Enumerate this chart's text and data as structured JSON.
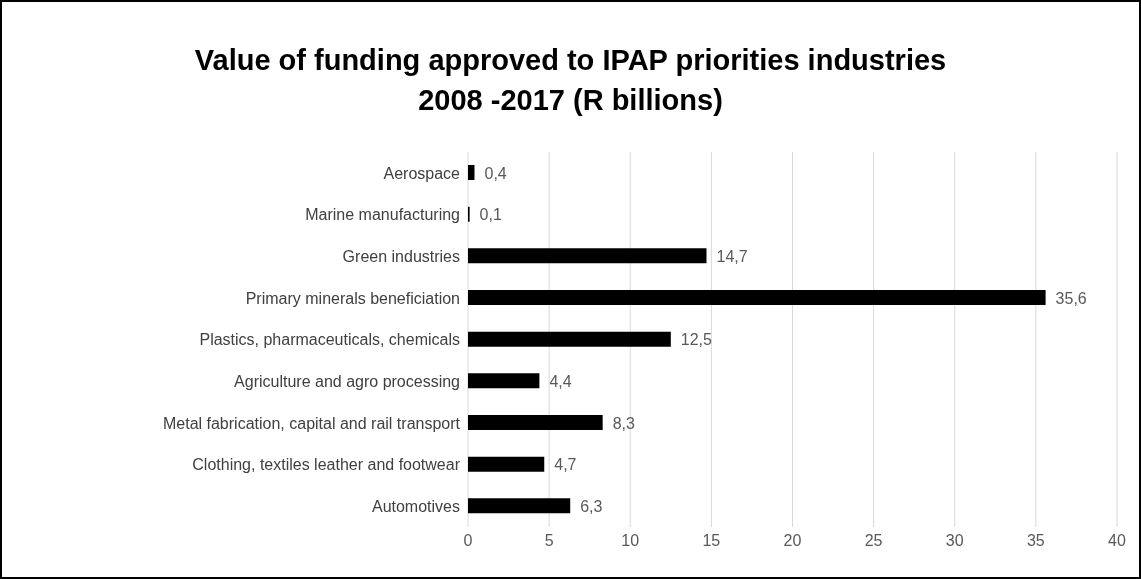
{
  "chart_data": {
    "type": "bar",
    "orientation": "horizontal",
    "title": "Value of funding approved to IPAP priorities industries\n2008 -2017 (R billions)",
    "categories": [
      "Aerospace",
      "Marine manufacturing",
      "Green industries",
      "Primary minerals beneficiation",
      "Plastics, pharmaceuticals, chemicals",
      "Agriculture and agro processing",
      "Metal fabrication, capital and rail transport",
      "Clothing, textiles leather and footwear",
      "Automotives"
    ],
    "values": [
      0.4,
      0.1,
      14.7,
      35.6,
      12.5,
      4.4,
      8.3,
      4.7,
      6.3
    ],
    "value_labels": [
      "0,4",
      "0,1",
      "14,7",
      "35,6",
      "12,5",
      "4,4",
      "8,3",
      "4,7",
      "6,3"
    ],
    "color": "#000000",
    "xlim": [
      0,
      40
    ],
    "xticks": [
      0,
      5,
      10,
      15,
      20,
      25,
      30,
      35,
      40
    ],
    "grid": "x",
    "legend": false
  }
}
